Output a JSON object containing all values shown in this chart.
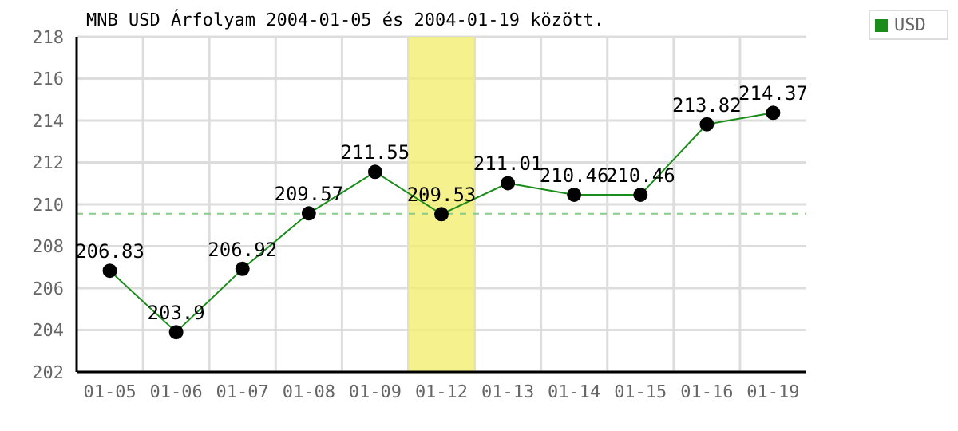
{
  "chart_data": {
    "type": "line",
    "title": "MNB USD Árfolyam 2004-01-05 és 2004-01-19 között.",
    "categories": [
      "01-05",
      "01-06",
      "01-07",
      "01-08",
      "01-09",
      "01-12",
      "01-13",
      "01-14",
      "01-15",
      "01-16",
      "01-19"
    ],
    "series": [
      {
        "name": "USD",
        "color": "#1a8c1a",
        "values": [
          206.83,
          203.9,
          206.92,
          209.57,
          211.55,
          209.53,
          211.01,
          210.46,
          210.46,
          213.82,
          214.37
        ]
      }
    ],
    "ylim": [
      202,
      218
    ],
    "yticks": [
      202,
      204,
      206,
      208,
      210,
      212,
      214,
      216,
      218
    ],
    "ref_lines": [
      {
        "axis": "y",
        "value": 209.55,
        "color": "#88cc88",
        "line_style": "dashed"
      }
    ],
    "bands": [
      {
        "axis": "x",
        "from": "01-12",
        "to": "01-12",
        "color": "#f2ee70"
      }
    ],
    "data_labels": true,
    "grid": true,
    "legend": "top right",
    "marker": "circle",
    "line_style": "solid"
  }
}
